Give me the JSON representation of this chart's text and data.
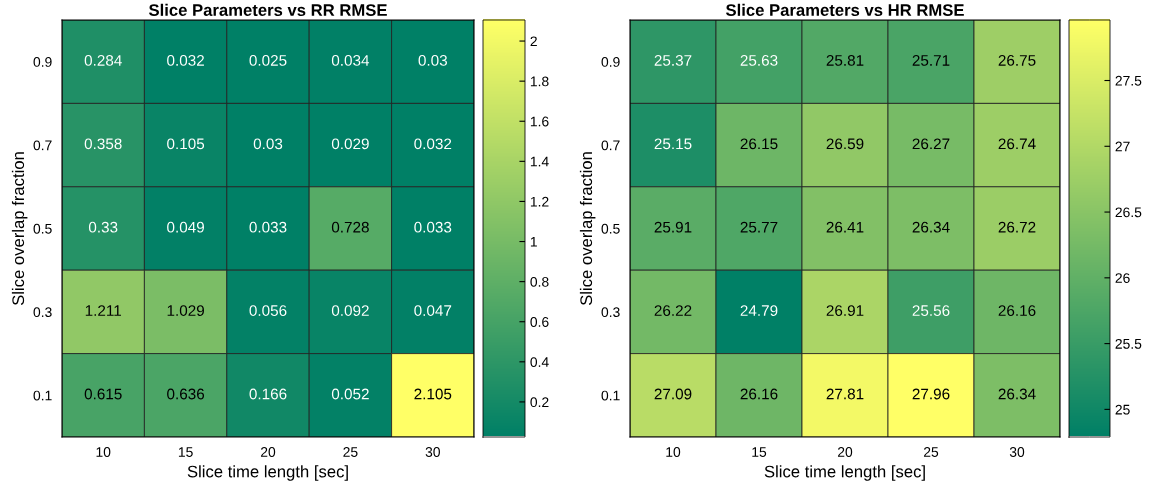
{
  "chart_data": [
    {
      "type": "heatmap",
      "title": "Slice Parameters vs RR RMSE",
      "xlabel": "Slice time length [sec]",
      "ylabel": "Slice overlap fraction",
      "categories": [
        "10",
        "15",
        "20",
        "25",
        "30"
      ],
      "y_categories": [
        "0.9",
        "0.7",
        "0.5",
        "0.3",
        "0.1"
      ],
      "cells": [
        [
          0.284,
          0.032,
          0.025,
          0.034,
          0.03
        ],
        [
          0.358,
          0.105,
          0.03,
          0.029,
          0.032
        ],
        [
          0.33,
          0.049,
          0.033,
          0.728,
          0.033
        ],
        [
          1.211,
          1.029,
          0.056,
          0.092,
          0.047
        ],
        [
          0.615,
          0.636,
          0.166,
          0.052,
          2.105
        ]
      ],
      "clim": [
        0.025,
        2.105
      ],
      "cticks": [
        0.2,
        0.4,
        0.6,
        0.8,
        1,
        1.2,
        1.4,
        1.6,
        1.8,
        2
      ],
      "data_labels": true
    },
    {
      "type": "heatmap",
      "title": "Slice Parameters vs HR RMSE",
      "xlabel": "Slice time length [sec]",
      "ylabel": "Slice overlap fraction",
      "categories": [
        "10",
        "15",
        "20",
        "25",
        "30"
      ],
      "y_categories": [
        "0.9",
        "0.7",
        "0.5",
        "0.3",
        "0.1"
      ],
      "cells": [
        [
          25.37,
          25.63,
          25.81,
          25.71,
          26.75
        ],
        [
          25.15,
          26.15,
          26.59,
          26.27,
          26.74
        ],
        [
          25.91,
          25.77,
          26.41,
          26.34,
          26.72
        ],
        [
          26.22,
          24.79,
          26.91,
          25.56,
          26.16
        ],
        [
          27.09,
          26.16,
          27.81,
          27.96,
          26.34
        ]
      ],
      "clim": [
        24.79,
        27.96
      ],
      "cticks": [
        25,
        25.5,
        26,
        26.5,
        27,
        27.5
      ],
      "data_labels": true
    }
  ]
}
